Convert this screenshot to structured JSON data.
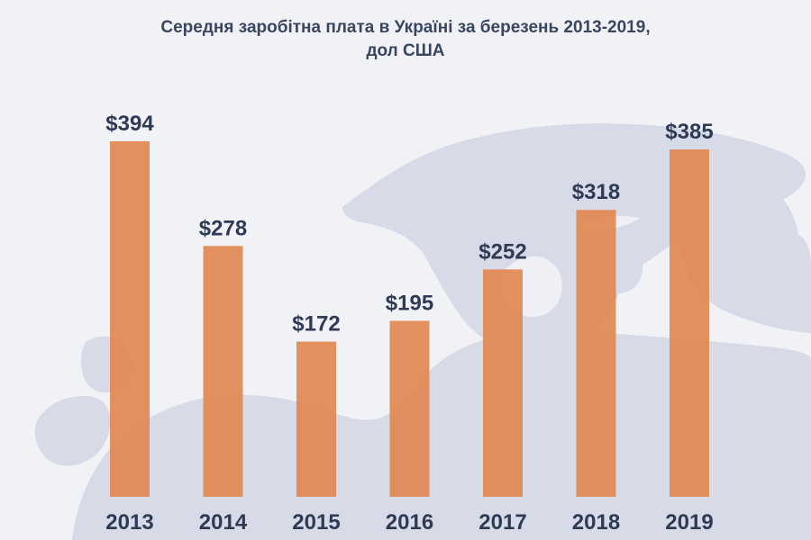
{
  "chart_data": {
    "type": "bar",
    "title_line1": "Середня заробітна плата в Україні за березень 2013-2019,",
    "title_line2": "дол США",
    "categories": [
      "2013",
      "2014",
      "2015",
      "2016",
      "2017",
      "2018",
      "2019"
    ],
    "values": [
      394,
      278,
      172,
      195,
      252,
      318,
      385
    ],
    "value_labels": [
      "$394",
      "$278",
      "$172",
      "$195",
      "$252",
      "$318",
      "$385"
    ],
    "xlabel": "",
    "ylabel": "",
    "ylim": [
      0,
      394
    ],
    "grid": false,
    "bar_color": "#e08a55",
    "label_color": "#2f3a55"
  },
  "background": {
    "sea_color": "#f1f2f6",
    "land_color": "#d7dbe8"
  }
}
